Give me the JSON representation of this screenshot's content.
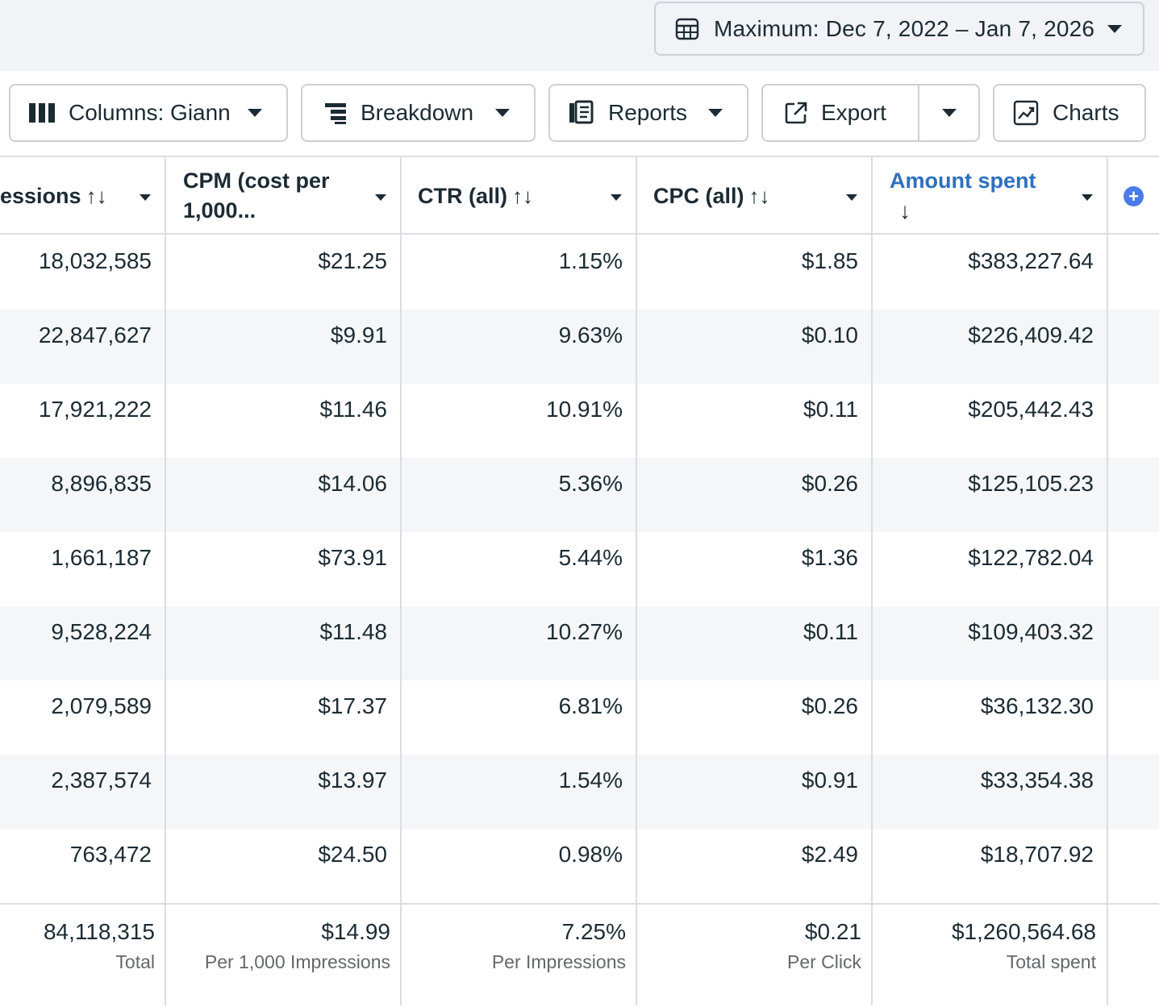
{
  "date_range": {
    "label": "Maximum: Dec 7, 2022 – Jan 7, 2026",
    "icon": "calendar-table-icon"
  },
  "toolbar": {
    "columns_label": "Columns: Giann",
    "breakdown_label": "Breakdown",
    "reports_label": "Reports",
    "export_label": "Export",
    "charts_label": "Charts"
  },
  "table": {
    "headers": {
      "impressions": "essions",
      "cpm_line1": "CPM (cost per",
      "cpm_line2": "1,000...",
      "ctr": "CTR (all)",
      "cpc": "CPC (all)",
      "amount": "Amount spent",
      "sort_glyph": "↑↓",
      "sorted_desc_glyph": "↓"
    },
    "rows": [
      {
        "impressions": "18,032,585",
        "cpm": "$21.25",
        "ctr": "1.15%",
        "cpc": "$1.85",
        "amount": "$383,227.64"
      },
      {
        "impressions": "22,847,627",
        "cpm": "$9.91",
        "ctr": "9.63%",
        "cpc": "$0.10",
        "amount": "$226,409.42"
      },
      {
        "impressions": "17,921,222",
        "cpm": "$11.46",
        "ctr": "10.91%",
        "cpc": "$0.11",
        "amount": "$205,442.43"
      },
      {
        "impressions": "8,896,835",
        "cpm": "$14.06",
        "ctr": "5.36%",
        "cpc": "$0.26",
        "amount": "$125,105.23"
      },
      {
        "impressions": "1,661,187",
        "cpm": "$73.91",
        "ctr": "5.44%",
        "cpc": "$1.36",
        "amount": "$122,782.04"
      },
      {
        "impressions": "9,528,224",
        "cpm": "$11.48",
        "ctr": "10.27%",
        "cpc": "$0.11",
        "amount": "$109,403.32"
      },
      {
        "impressions": "2,079,589",
        "cpm": "$17.37",
        "ctr": "6.81%",
        "cpc": "$0.26",
        "amount": "$36,132.30"
      },
      {
        "impressions": "2,387,574",
        "cpm": "$13.97",
        "ctr": "1.54%",
        "cpc": "$0.91",
        "amount": "$33,354.38"
      },
      {
        "impressions": "763,472",
        "cpm": "$24.50",
        "ctr": "0.98%",
        "cpc": "$2.49",
        "amount": "$18,707.92"
      }
    ],
    "totals": {
      "impressions": {
        "value": "84,118,315",
        "sub": "Total"
      },
      "cpm": {
        "value": "$14.99",
        "sub": "Per 1,000 Impressions"
      },
      "ctr": {
        "value": "7.25%",
        "sub": "Per Impressions"
      },
      "cpc": {
        "value": "$0.21",
        "sub": "Per Click"
      },
      "amount": {
        "value": "$1,260,564.68",
        "sub": "Total spent"
      }
    }
  },
  "colors": {
    "accent": "#2f6fbf",
    "plus": "#4a7be8",
    "border": "#dadde1",
    "alt_row": "#f5f6f7"
  }
}
